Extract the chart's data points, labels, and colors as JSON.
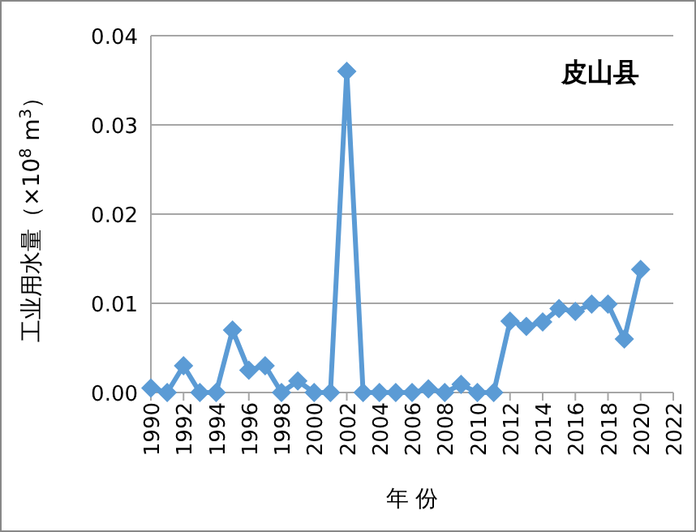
{
  "chart_data": {
    "type": "line",
    "title": "皮山县",
    "xlabel": "年 份",
    "ylabel": "工业用水量（×10$^{8}$ m$^{3}$）",
    "x": [
      1990,
      1991,
      1992,
      1993,
      1994,
      1995,
      1996,
      1997,
      1998,
      1999,
      2000,
      2001,
      2002,
      2003,
      2004,
      2005,
      2006,
      2007,
      2008,
      2009,
      2010,
      2011,
      2012,
      2013,
      2014,
      2015,
      2016,
      2017,
      2018,
      2019,
      2020
    ],
    "series": [
      {
        "color": "#5b9bd5",
        "values": [
          0.0005,
          0,
          0.003,
          0,
          0,
          0.007,
          0.0025,
          0.003,
          0,
          0.0013,
          0,
          0,
          0.036,
          0,
          0,
          0,
          0,
          0.0004,
          0,
          0.0009,
          0,
          0,
          0.008,
          0.0074,
          0.0079,
          0.0094,
          0.0091,
          0.0099,
          0.0099,
          0.006,
          0.0138
        ]
      }
    ],
    "xlim": [
      1990,
      2022
    ],
    "xticks": [
      1990,
      1992,
      1994,
      1996,
      1998,
      2000,
      2002,
      2004,
      2006,
      2008,
      2010,
      2012,
      2014,
      2016,
      2018,
      2020,
      2022
    ],
    "ylim": [
      0,
      0.04
    ],
    "yticks": [
      {
        "value": 0,
        "label": "0.00"
      },
      {
        "value": 0.01,
        "label": "0.01"
      },
      {
        "value": 0.02,
        "label": "0.02"
      },
      {
        "value": 0.03,
        "label": "0.03"
      },
      {
        "value": 0.04,
        "label": "0.04"
      }
    ],
    "grid": "y",
    "marker": "diamond",
    "line_style": "solid"
  }
}
